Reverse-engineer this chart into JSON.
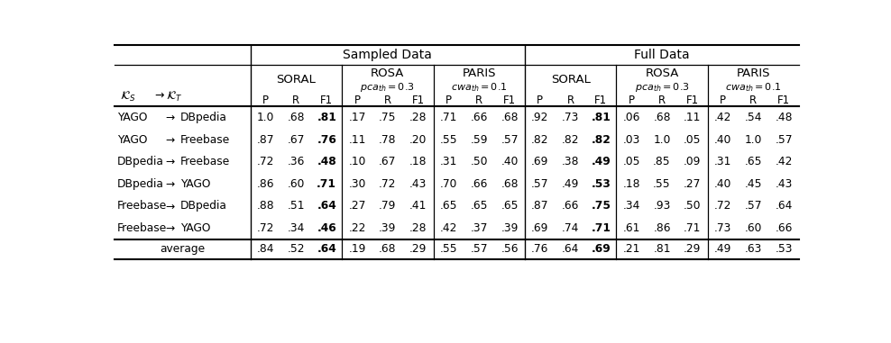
{
  "background": "#ffffff",
  "text_color": "#000000",
  "sampled_label": "Sampled Data",
  "full_label": "Full Data",
  "method_names": [
    "SORAL",
    "ROSA",
    "PARIS",
    "SORAL",
    "ROSA",
    "PARIS"
  ],
  "subheaders": [
    "",
    "pca_th=0.3",
    "cwa_th=0.1",
    "",
    "pca_th=0.3",
    "cwa_th=0.1"
  ],
  "bold_f1_methods": [
    0,
    3
  ],
  "rows": [
    {
      "src": "YAGO",
      "tgt": "DBpedia",
      "vals": [
        [
          "1.0",
          ".68",
          ".81"
        ],
        [
          ".17",
          ".75",
          ".28"
        ],
        [
          ".71",
          ".66",
          ".68"
        ],
        [
          ".92",
          ".73",
          ".81"
        ],
        [
          ".06",
          ".68",
          ".11"
        ],
        [
          ".42",
          ".54",
          ".48"
        ]
      ]
    },
    {
      "src": "YAGO",
      "tgt": "Freebase",
      "vals": [
        [
          ".87",
          ".67",
          ".76"
        ],
        [
          ".11",
          ".78",
          ".20"
        ],
        [
          ".55",
          ".59",
          ".57"
        ],
        [
          ".82",
          ".82",
          ".82"
        ],
        [
          ".03",
          "1.0",
          ".05"
        ],
        [
          ".40",
          "1.0",
          ".57"
        ]
      ]
    },
    {
      "src": "DBpedia",
      "tgt": "Freebase",
      "vals": [
        [
          ".72",
          ".36",
          ".48"
        ],
        [
          ".10",
          ".67",
          ".18"
        ],
        [
          ".31",
          ".50",
          ".40"
        ],
        [
          ".69",
          ".38",
          ".49"
        ],
        [
          ".05",
          ".85",
          ".09"
        ],
        [
          ".31",
          ".65",
          ".42"
        ]
      ]
    },
    {
      "src": "DBpedia",
      "tgt": "YAGO",
      "vals": [
        [
          ".86",
          ".60",
          ".71"
        ],
        [
          ".30",
          ".72",
          ".43"
        ],
        [
          ".70",
          ".66",
          ".68"
        ],
        [
          ".57",
          ".49",
          ".53"
        ],
        [
          ".18",
          ".55",
          ".27"
        ],
        [
          ".40",
          ".45",
          ".43"
        ]
      ]
    },
    {
      "src": "Freebase",
      "tgt": "DBpedia",
      "vals": [
        [
          ".88",
          ".51",
          ".64"
        ],
        [
          ".27",
          ".79",
          ".41"
        ],
        [
          ".65",
          ".65",
          ".65"
        ],
        [
          ".87",
          ".66",
          ".75"
        ],
        [
          ".34",
          ".93",
          ".50"
        ],
        [
          ".72",
          ".57",
          ".64"
        ]
      ]
    },
    {
      "src": "Freebase",
      "tgt": "YAGO",
      "vals": [
        [
          ".72",
          ".34",
          ".46"
        ],
        [
          ".22",
          ".39",
          ".28"
        ],
        [
          ".42",
          ".37",
          ".39"
        ],
        [
          ".69",
          ".74",
          ".71"
        ],
        [
          ".61",
          ".86",
          ".71"
        ],
        [
          ".73",
          ".60",
          ".66"
        ]
      ]
    }
  ],
  "avg": [
    [
      ".84",
      ".52",
      ".64"
    ],
    [
      ".19",
      ".68",
      ".29"
    ],
    [
      ".55",
      ".57",
      ".56"
    ],
    [
      ".76",
      ".64",
      ".69"
    ],
    [
      ".21",
      ".81",
      ".29"
    ],
    [
      ".49",
      ".63",
      ".53"
    ]
  ]
}
